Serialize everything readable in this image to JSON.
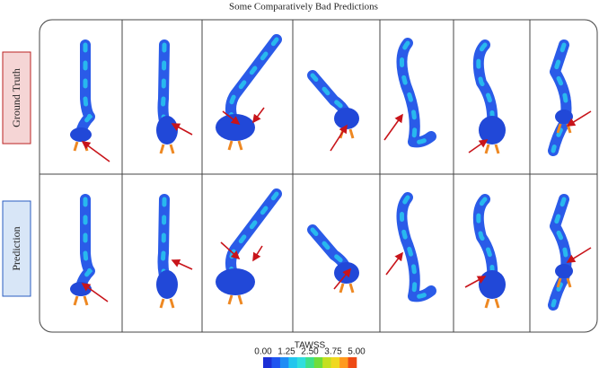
{
  "title": "Some Comparatively Bad Predictions",
  "rows": [
    "Ground Truth",
    "Prediction"
  ],
  "colorbar": {
    "title": "TAWSS",
    "ticks": [
      "0.00",
      "1.25",
      "2.50",
      "3.75",
      "5.00"
    ]
  }
}
